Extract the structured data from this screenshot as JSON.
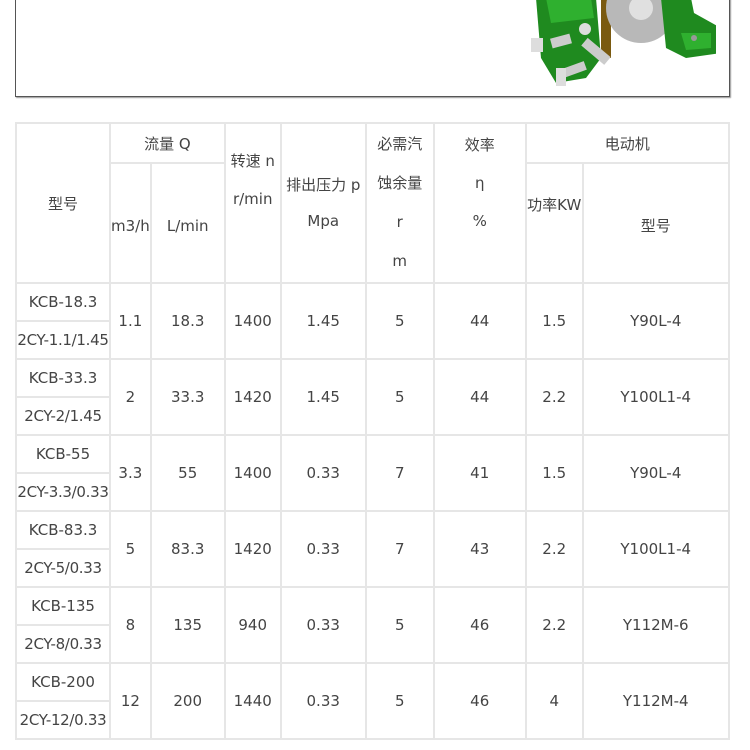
{
  "header": {
    "model": "型号",
    "flow": "流量 Q",
    "flow_m3h": "m3/h",
    "flow_lmin": "L/min",
    "speed": "转速 n",
    "speed_unit": "r/min",
    "pressure": "排出压力 p",
    "pressure_unit": "Mpa",
    "npsh_line1": "必需汽",
    "npsh_line2": "蚀余量",
    "npsh_line3": "r",
    "npsh_line4": "m",
    "eff": "效率",
    "eff_sym": "η",
    "eff_unit": "%",
    "motor": "电动机",
    "motor_power": "功率KW",
    "motor_model": "型号"
  },
  "rows": [
    {
      "kcb": "KCB-18.3",
      "cy": "2CY-1.1/1.45",
      "m3h": "1.1",
      "lmin": "18.3",
      "speed": "1400",
      "pressure": "1.45",
      "npsh": "5",
      "eff": "44",
      "power": "1.5",
      "motor": "Y90L-4"
    },
    {
      "kcb": "KCB-33.3",
      "cy": "2CY-2/1.45",
      "m3h": "2",
      "lmin": "33.3",
      "speed": "1420",
      "pressure": "1.45",
      "npsh": "5",
      "eff": "44",
      "power": "2.2",
      "motor": "Y100L1-4"
    },
    {
      "kcb": "KCB-55",
      "cy": "2CY-3.3/0.33",
      "m3h": "3.3",
      "lmin": "55",
      "speed": "1400",
      "pressure": "0.33",
      "npsh": "7",
      "eff": "41",
      "power": "1.5",
      "motor": "Y90L-4"
    },
    {
      "kcb": "KCB-83.3",
      "cy": "2CY-5/0.33",
      "m3h": "5",
      "lmin": "83.3",
      "speed": "1420",
      "pressure": "0.33",
      "npsh": "7",
      "eff": "43",
      "power": "2.2",
      "motor": "Y100L1-4"
    },
    {
      "kcb": "KCB-135",
      "cy": "2CY-8/0.33",
      "m3h": "8",
      "lmin": "135",
      "speed": "940",
      "pressure": "0.33",
      "npsh": "5",
      "eff": "46",
      "power": "2.2",
      "motor": "Y112M-6"
    },
    {
      "kcb": "KCB-200",
      "cy": "2CY-12/0.33",
      "m3h": "12",
      "lmin": "200",
      "speed": "1440",
      "pressure": "0.33",
      "npsh": "5",
      "eff": "46",
      "power": "4",
      "motor": "Y112M-4"
    }
  ]
}
